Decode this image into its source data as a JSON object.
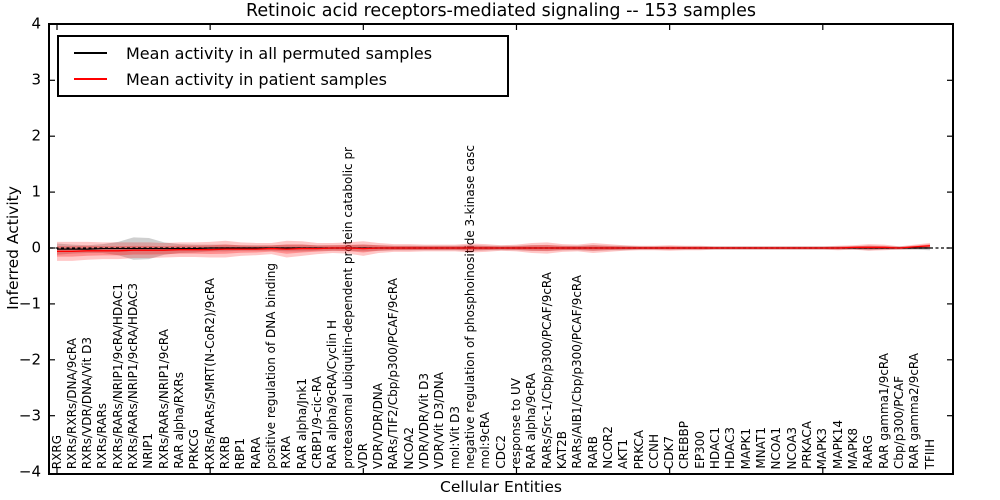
{
  "figure": {
    "title": "Retinoic acid receptors-mediated signaling -- 153 samples",
    "xlabel": "Cellular Entities",
    "ylabel": "Inferred Activity"
  },
  "legend": {
    "items": [
      {
        "label": "Mean activity in all permuted samples",
        "color": "#000000"
      },
      {
        "label": "Mean activity in patient samples",
        "color": "#ff0000"
      }
    ]
  },
  "chart_data": {
    "type": "line",
    "title": "Retinoic acid receptors-mediated signaling -- 153 samples",
    "xlabel": "Cellular Entities",
    "ylabel": "Inferred Activity",
    "ylim": [
      -4,
      4
    ],
    "ytick_values": [
      4,
      3,
      2,
      1,
      0,
      -1,
      -2,
      -3,
      -4
    ],
    "ytick_labels": [
      "4",
      "3",
      "2",
      "1",
      "0",
      "−1",
      "−2",
      "−3",
      "−4"
    ],
    "xtick_indices": [
      0,
      10,
      20,
      30,
      40,
      50
    ],
    "grid": false,
    "legend_position": "upper left",
    "zero_line": {
      "value": 0,
      "style": "dashed",
      "color": "#000000"
    },
    "categories": [
      "RXRG",
      "RXRs/RXRs/DNA/9cRA",
      "RXRs/VDR/DNA/Vit D3",
      "RXRs/RARs",
      "RXRs/RARs/NRIP1/9cRA/HDAC1",
      "RXRs/RARs/NRIP1/9cRA/HDAC3",
      "NRIP1",
      "RXRs/RARs/NRIP1/9cRA",
      "RAR alpha/RXRs",
      "PRKCG",
      "RXRs/RARs/SMRT(N-CoR2)/9cRA",
      "RXRB",
      "RBP1",
      "RARA",
      "positive regulation of DNA binding",
      "RXRA",
      "RAR alpha/Jnk1",
      "CRBP1/9-cic-RA",
      "RAR alpha/9cRA/Cyclin H",
      "proteasomal ubiquitin-dependent protein catabolic pr",
      "VDR",
      "VDR/VDR/DNA",
      "RARs/TIF2/Cbp/p300/PCAF/9cRA",
      "NCOA2",
      "VDR/VDR/Vit D3",
      "VDR/Vit D3/DNA",
      "mol:Vit D3",
      "negative regulation of phosphoinositide 3-kinase casc",
      "mol:9cRA",
      "CDC2",
      "response to UV",
      "RAR alpha/9cRA",
      "RARs/Src-1/Cbp/p300/PCAF/9cRA",
      "KAT2B",
      "RARs/AIB1/Cbp/p300/PCAF/9cRA",
      "RARB",
      "NCOR2",
      "AKT1",
      "PRKCA",
      "CCNH",
      "CDK7",
      "CREBBP",
      "EP300",
      "HDAC1",
      "HDAC3",
      "MAPK1",
      "MNAT1",
      "NCOA1",
      "NCOA3",
      "PRKACA",
      "MAPK3",
      "MAPK14",
      "MAPK8",
      "RARG",
      "RAR gamma1/9cRA",
      "Cbp/p300/PCAF",
      "RAR gamma2/9cRA",
      "TFIIH"
    ],
    "series": [
      {
        "name": "Mean activity in all permuted samples",
        "color": "#000000",
        "band_color": "#888888",
        "mean": [
          -0.02,
          -0.02,
          -0.02,
          -0.01,
          -0.01,
          -0.01,
          -0.01,
          -0.01,
          -0.01,
          -0.01,
          0,
          0,
          0,
          0,
          0,
          0,
          0,
          0,
          0,
          0,
          0,
          0,
          0,
          0,
          0,
          0,
          0,
          0,
          0,
          0,
          0,
          0,
          0,
          0,
          0,
          0,
          0,
          0,
          0,
          0,
          0,
          0,
          0,
          0,
          0,
          0,
          0,
          0,
          0,
          0,
          0,
          0,
          0,
          0,
          0,
          0,
          0,
          0
        ],
        "std": [
          0.1,
          0.08,
          0.07,
          0.08,
          0.12,
          0.2,
          0.19,
          0.11,
          0.08,
          0.07,
          0.06,
          0.06,
          0.05,
          0.05,
          0.05,
          0.06,
          0.06,
          0.05,
          0.05,
          0.05,
          0.06,
          0.05,
          0.04,
          0.04,
          0.04,
          0.04,
          0.04,
          0.05,
          0.04,
          0.04,
          0.04,
          0.05,
          0.05,
          0.04,
          0.04,
          0.05,
          0.04,
          0.04,
          0.03,
          0.03,
          0.03,
          0.03,
          0.03,
          0.03,
          0.03,
          0.03,
          0.03,
          0.03,
          0.03,
          0.03,
          0.03,
          0.03,
          0.03,
          0.04,
          0.03,
          0.03,
          0.03,
          0.04
        ]
      },
      {
        "name": "Mean activity in patient samples",
        "color": "#ff0000",
        "band_color": "#ff0000",
        "mean": [
          -0.06,
          -0.06,
          -0.05,
          -0.05,
          -0.05,
          -0.04,
          -0.04,
          -0.04,
          -0.03,
          -0.03,
          -0.03,
          -0.02,
          -0.02,
          -0.02,
          -0.01,
          -0.02,
          -0.01,
          -0.01,
          0,
          0,
          -0.01,
          0,
          0,
          0,
          0,
          0,
          0,
          0,
          0,
          0,
          0,
          0,
          0,
          0,
          0,
          0,
          0,
          0,
          0,
          0,
          0,
          0,
          0,
          0,
          0,
          0,
          0,
          0,
          0,
          0,
          0,
          0,
          0.01,
          0.01,
          0.01,
          0,
          0.02,
          0.04
        ],
        "std": [
          0.17,
          0.17,
          0.16,
          0.15,
          0.15,
          0.14,
          0.14,
          0.13,
          0.13,
          0.13,
          0.14,
          0.15,
          0.12,
          0.11,
          0.1,
          0.15,
          0.13,
          0.1,
          0.09,
          0.1,
          0.13,
          0.09,
          0.07,
          0.07,
          0.06,
          0.06,
          0.06,
          0.08,
          0.07,
          0.05,
          0.06,
          0.09,
          0.1,
          0.07,
          0.06,
          0.09,
          0.07,
          0.05,
          0.04,
          0.04,
          0.05,
          0.04,
          0.04,
          0.03,
          0.03,
          0.03,
          0.03,
          0.03,
          0.03,
          0.03,
          0.03,
          0.04,
          0.04,
          0.06,
          0.05,
          0.03,
          0.04,
          0.05
        ]
      }
    ]
  }
}
